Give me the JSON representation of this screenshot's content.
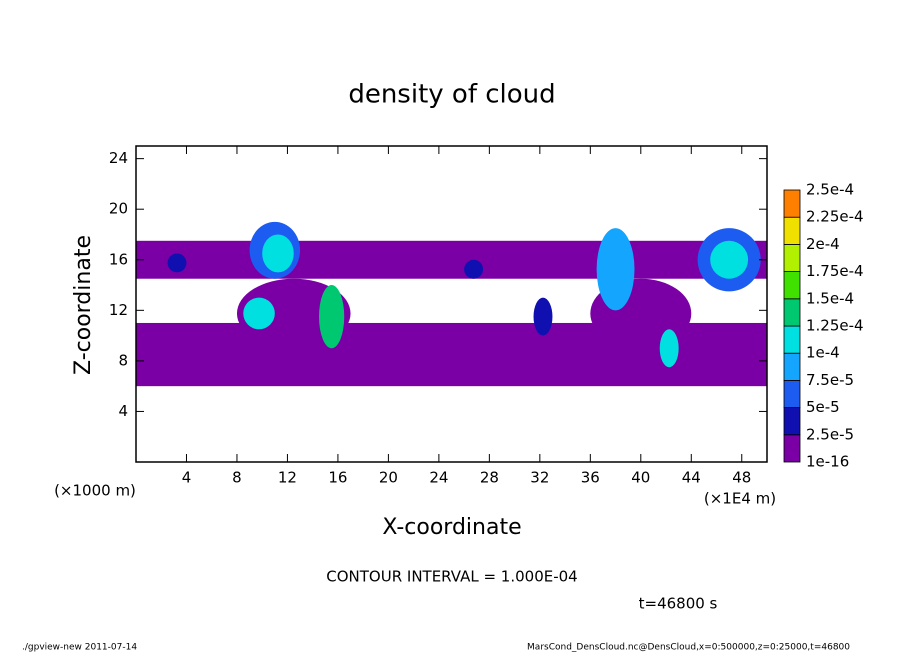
{
  "chart_data": {
    "type": "contour",
    "title": "density of cloud",
    "x_label": "X-coordinate",
    "y_label": "Z-coordinate",
    "x_unit": "(×1E4 m)",
    "y_unit": "(×1000 m)",
    "xlim": [
      0,
      50
    ],
    "xticks": [
      4,
      8,
      12,
      16,
      20,
      24,
      28,
      32,
      36,
      40,
      44,
      48
    ],
    "ylim": [
      0,
      25
    ],
    "yticks": [
      4,
      8,
      12,
      16,
      20,
      24
    ],
    "levels": [
      {
        "value": 1e-16,
        "label": "1e-16"
      },
      {
        "value": 2.5e-05,
        "label": "2.5e-5"
      },
      {
        "value": 5e-05,
        "label": "5e-5"
      },
      {
        "value": 7.5e-05,
        "label": "7.5e-5"
      },
      {
        "value": 0.0001,
        "label": "1e-4"
      },
      {
        "value": 0.000125,
        "label": "1.25e-4"
      },
      {
        "value": 0.00015,
        "label": "1.5e-4"
      },
      {
        "value": 0.000175,
        "label": "1.75e-4"
      },
      {
        "value": 0.0002,
        "label": "2e-4"
      },
      {
        "value": 0.000225,
        "label": "2.25e-4"
      },
      {
        "value": 0.00025,
        "label": "2.5e-4"
      }
    ],
    "colors": [
      "#7a00a6",
      "#1010b0",
      "#1d5cf0",
      "#14a6ff",
      "#00e0e0",
      "#00c870",
      "#40e000",
      "#b0f000",
      "#f0e000",
      "#ff8000",
      "#ff2020"
    ],
    "patches": [
      {
        "x": [
          0,
          50
        ],
        "z": [
          6,
          11
        ],
        "level": 1e-16
      },
      {
        "x": [
          0,
          50
        ],
        "z": [
          14.5,
          17.5
        ],
        "level": 1e-16
      },
      {
        "x": [
          8,
          17
        ],
        "z": [
          9,
          14.5
        ],
        "level": 1e-16
      },
      {
        "x": [
          36,
          44
        ],
        "z": [
          9,
          14.5
        ],
        "level": 1e-16
      },
      {
        "x": [
          9,
          13
        ],
        "z": [
          14.5,
          19
        ],
        "level": 5e-05
      },
      {
        "x": [
          10,
          12.5
        ],
        "z": [
          15,
          18
        ],
        "level": 0.0001
      },
      {
        "x": [
          8.5,
          11
        ],
        "z": [
          10.5,
          13
        ],
        "level": 0.0001
      },
      {
        "x": [
          14.5,
          16.5
        ],
        "z": [
          9,
          14
        ],
        "level": 0.000125
      },
      {
        "x": [
          36.5,
          39.5
        ],
        "z": [
          12,
          18.5
        ],
        "level": 7.5e-05
      },
      {
        "x": [
          41.5,
          43
        ],
        "z": [
          7.5,
          10.5
        ],
        "level": 0.0001
      },
      {
        "x": [
          44.5,
          49.5
        ],
        "z": [
          13.5,
          18.5
        ],
        "level": 5e-05
      },
      {
        "x": [
          45.5,
          48.5
        ],
        "z": [
          14.5,
          17.5
        ],
        "level": 0.0001
      },
      {
        "x": [
          2.5,
          4
        ],
        "z": [
          15,
          16.5
        ],
        "level": 2.5e-05
      },
      {
        "x": [
          26,
          27.5
        ],
        "z": [
          14.5,
          16
        ],
        "level": 2.5e-05
      },
      {
        "x": [
          31.5,
          33
        ],
        "z": [
          10,
          13
        ],
        "level": 2.5e-05
      }
    ],
    "annotation": "CONTOUR INTERVAL = 1.000E-04",
    "time": "t=46800 s",
    "footer_left": "./gpview-new   2011-07-14",
    "footer_right": "MarsCond_DensCloud.nc@DensCloud,x=0:500000,z=0:25000,t=46800"
  }
}
